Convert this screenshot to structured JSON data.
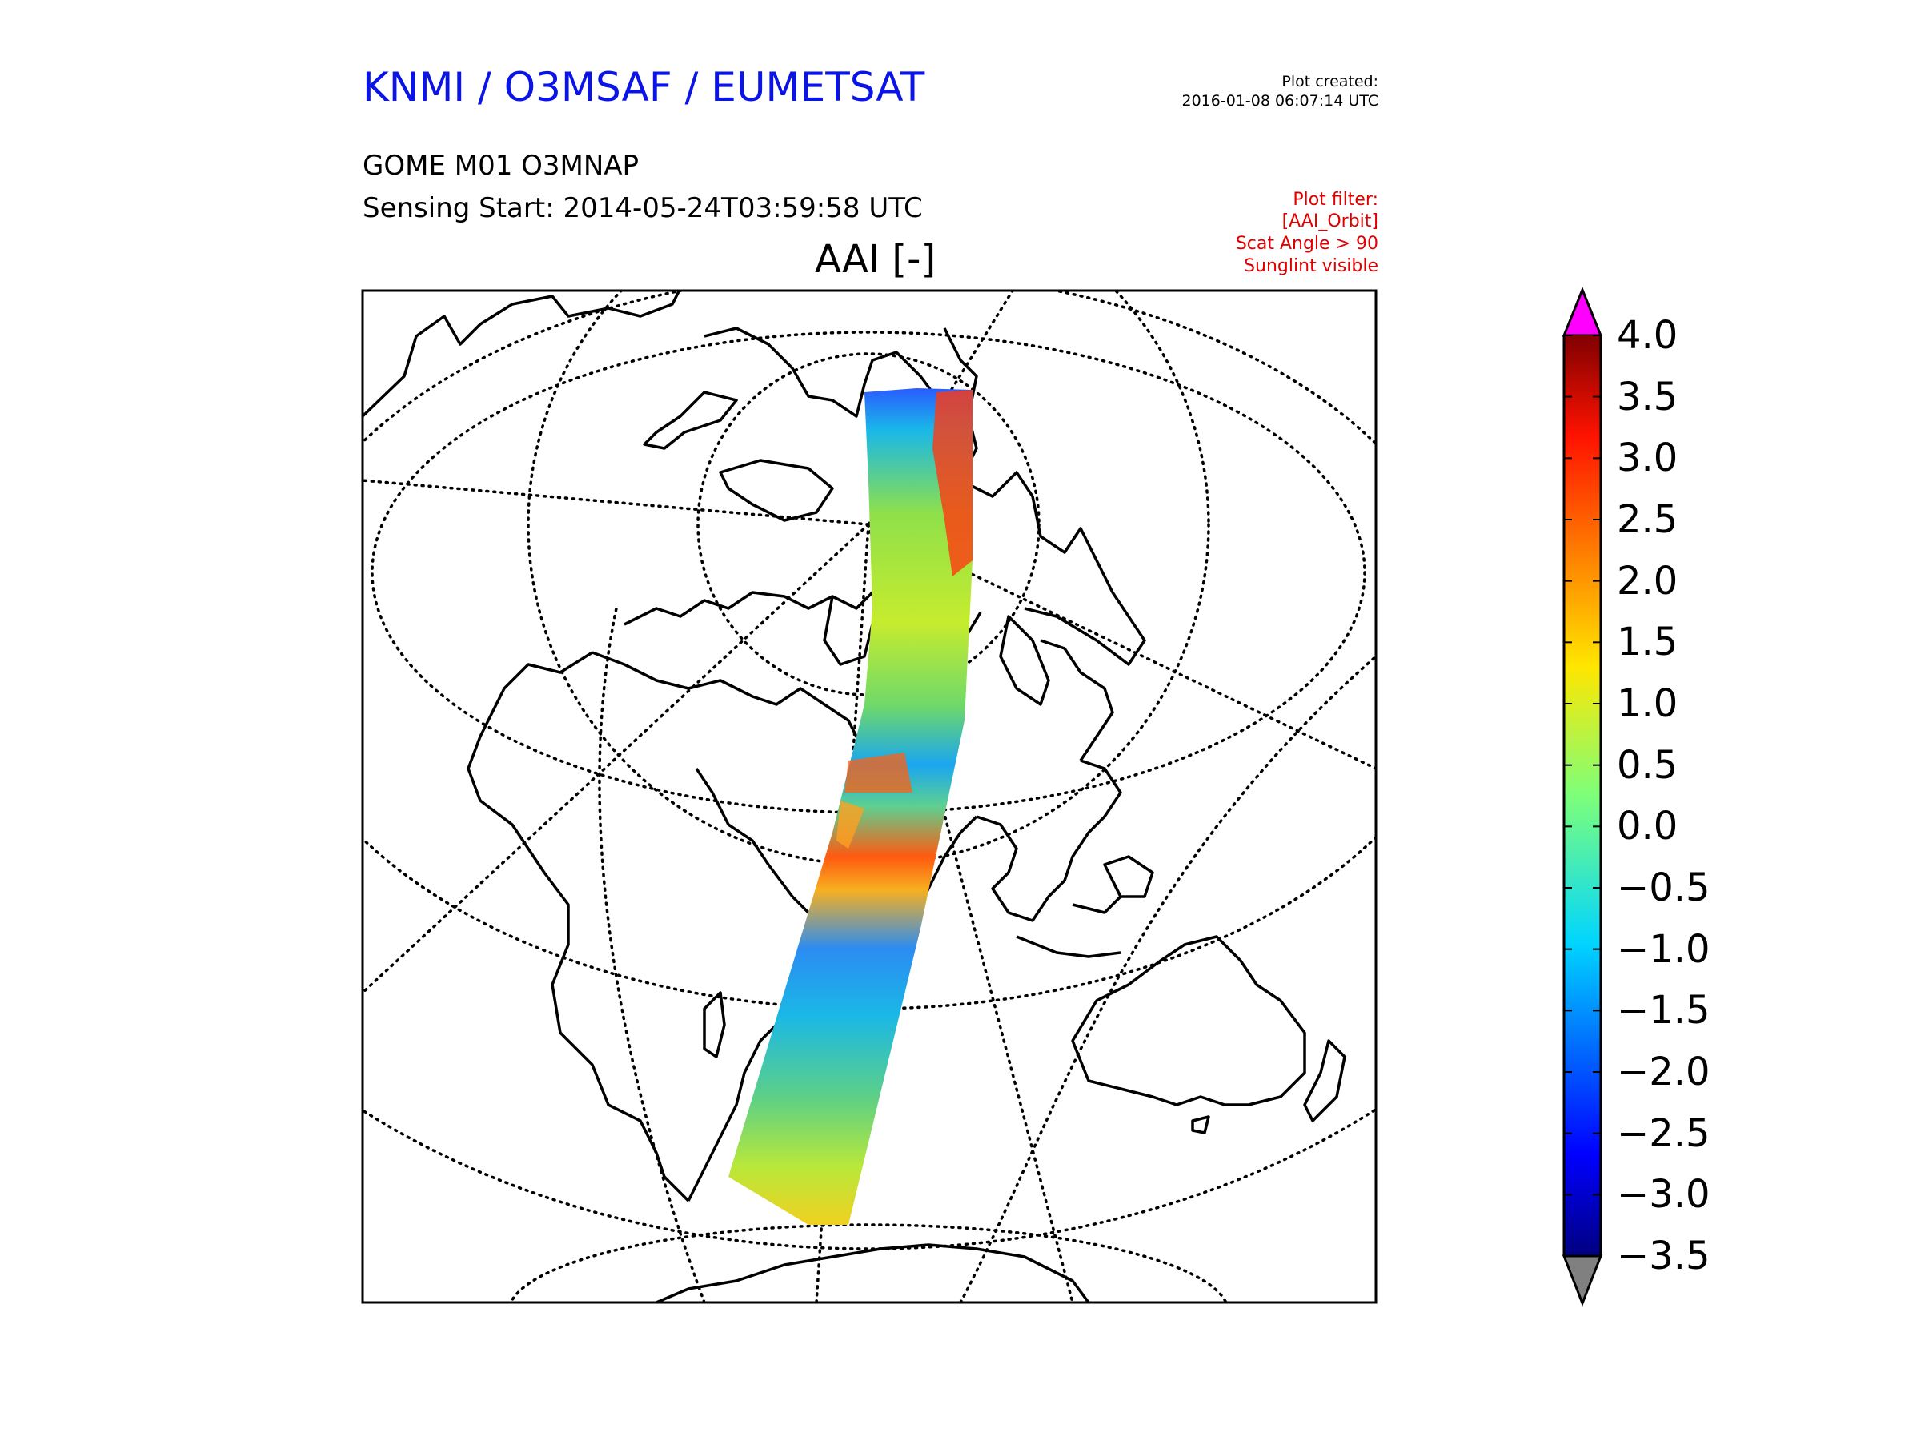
{
  "header": {
    "title": "KNMI / O3MSAF / EUMETSAT",
    "product": "GOME M01 O3MNAP",
    "sensing_start": "Sensing Start: 2014-05-24T03:59:58 UTC",
    "variable": "AAI [-]"
  },
  "plot_created": {
    "label": "Plot created:",
    "timestamp": "2016-01-08 06:07:14 UTC"
  },
  "plot_filter": {
    "lines": [
      "Plot filter:",
      "[AAI_Orbit]",
      "Scat Angle > 90",
      "Sunglint visible"
    ],
    "color": "#e00000"
  },
  "colorbar": {
    "ticks": [
      "4.0",
      "3.5",
      "3.0",
      "2.5",
      "2.0",
      "1.5",
      "1.0",
      "0.5",
      "0.0",
      "−0.5",
      "−1.0",
      "−1.5",
      "−2.0",
      "−2.5",
      "−3.0",
      "−3.5"
    ],
    "vmin": -3.5,
    "vmax": 4.0,
    "colormap": "jet",
    "over_color": "#ff00ff",
    "under_color": "#808080"
  },
  "colors": {
    "title": "#0a14e6",
    "filter": "#e00000"
  }
}
